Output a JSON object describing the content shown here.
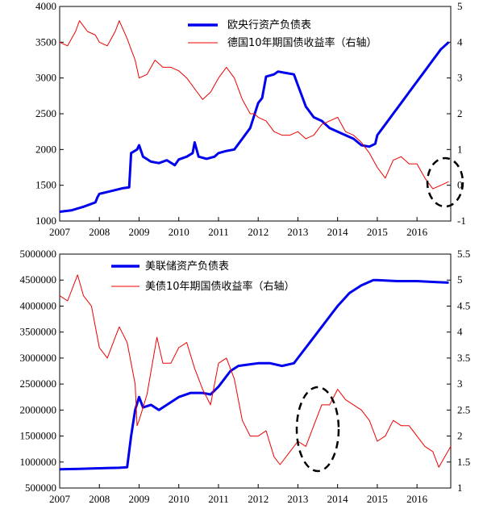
{
  "chart_data": [
    {
      "type": "line",
      "x_ticks": [
        "2007",
        "2008",
        "2009",
        "2010",
        "2011",
        "2012",
        "2013",
        "2014",
        "2015",
        "2016"
      ],
      "xlim": [
        2007.0,
        2016.85
      ],
      "y_left_ticks": [
        "1000",
        "1500",
        "2000",
        "2500",
        "3000",
        "3500",
        "4000"
      ],
      "ylim_left": [
        1000,
        4000
      ],
      "y_right_ticks": [
        "-1",
        "0",
        "1",
        "2",
        "3",
        "4",
        "5"
      ],
      "ylim_right": [
        -1,
        5
      ],
      "legend_position": "top-center",
      "series": [
        {
          "name": "欧央行资产负债表",
          "axis": "left",
          "color": "#0000ee",
          "points": [
            [
              2007.0,
              1130
            ],
            [
              2007.3,
              1150
            ],
            [
              2007.6,
              1200
            ],
            [
              2007.9,
              1260
            ],
            [
              2007.95,
              1330
            ],
            [
              2008.0,
              1380
            ],
            [
              2008.3,
              1420
            ],
            [
              2008.6,
              1460
            ],
            [
              2008.75,
              1470
            ],
            [
              2008.8,
              1950
            ],
            [
              2008.95,
              2000
            ],
            [
              2009.0,
              2060
            ],
            [
              2009.1,
              1900
            ],
            [
              2009.3,
              1830
            ],
            [
              2009.5,
              1810
            ],
            [
              2009.7,
              1850
            ],
            [
              2009.9,
              1780
            ],
            [
              2010.0,
              1860
            ],
            [
              2010.2,
              1900
            ],
            [
              2010.35,
              1950
            ],
            [
              2010.4,
              2100
            ],
            [
              2010.5,
              1900
            ],
            [
              2010.7,
              1870
            ],
            [
              2010.9,
              1900
            ],
            [
              2011.0,
              1950
            ],
            [
              2011.2,
              1980
            ],
            [
              2011.4,
              2000
            ],
            [
              2011.6,
              2150
            ],
            [
              2011.8,
              2300
            ],
            [
              2012.0,
              2650
            ],
            [
              2012.1,
              2720
            ],
            [
              2012.2,
              3020
            ],
            [
              2012.4,
              3050
            ],
            [
              2012.5,
              3090
            ],
            [
              2012.7,
              3070
            ],
            [
              2012.9,
              3050
            ],
            [
              2013.0,
              2900
            ],
            [
              2013.2,
              2600
            ],
            [
              2013.4,
              2450
            ],
            [
              2013.6,
              2400
            ],
            [
              2013.8,
              2300
            ],
            [
              2014.0,
              2250
            ],
            [
              2014.2,
              2200
            ],
            [
              2014.4,
              2150
            ],
            [
              2014.6,
              2060
            ],
            [
              2014.8,
              2040
            ],
            [
              2014.95,
              2080
            ],
            [
              2015.0,
              2200
            ],
            [
              2015.2,
              2350
            ],
            [
              2015.4,
              2500
            ],
            [
              2015.6,
              2650
            ],
            [
              2015.8,
              2800
            ],
            [
              2016.0,
              2950
            ],
            [
              2016.2,
              3100
            ],
            [
              2016.4,
              3250
            ],
            [
              2016.6,
              3400
            ],
            [
              2016.8,
              3500
            ]
          ]
        },
        {
          "name": "德国10年期国债收益率（右轴）",
          "axis": "right",
          "color": "#ee0000",
          "points": [
            [
              2007.0,
              4.0
            ],
            [
              2007.2,
              3.9
            ],
            [
              2007.4,
              4.3
            ],
            [
              2007.5,
              4.6
            ],
            [
              2007.7,
              4.3
            ],
            [
              2007.9,
              4.2
            ],
            [
              2008.0,
              4.0
            ],
            [
              2008.2,
              3.9
            ],
            [
              2008.4,
              4.3
            ],
            [
              2008.5,
              4.6
            ],
            [
              2008.7,
              4.1
            ],
            [
              2008.9,
              3.5
            ],
            [
              2009.0,
              3.0
            ],
            [
              2009.2,
              3.1
            ],
            [
              2009.4,
              3.5
            ],
            [
              2009.6,
              3.3
            ],
            [
              2009.8,
              3.3
            ],
            [
              2010.0,
              3.2
            ],
            [
              2010.2,
              3.0
            ],
            [
              2010.4,
              2.7
            ],
            [
              2010.6,
              2.4
            ],
            [
              2010.8,
              2.6
            ],
            [
              2011.0,
              3.0
            ],
            [
              2011.2,
              3.3
            ],
            [
              2011.4,
              3.0
            ],
            [
              2011.6,
              2.4
            ],
            [
              2011.8,
              2.0
            ],
            [
              2011.9,
              2.0
            ],
            [
              2012.0,
              1.9
            ],
            [
              2012.2,
              1.8
            ],
            [
              2012.4,
              1.5
            ],
            [
              2012.6,
              1.4
            ],
            [
              2012.8,
              1.4
            ],
            [
              2013.0,
              1.5
            ],
            [
              2013.2,
              1.3
            ],
            [
              2013.4,
              1.4
            ],
            [
              2013.6,
              1.7
            ],
            [
              2013.8,
              1.8
            ],
            [
              2014.0,
              1.9
            ],
            [
              2014.2,
              1.5
            ],
            [
              2014.4,
              1.4
            ],
            [
              2014.6,
              1.2
            ],
            [
              2014.8,
              0.9
            ],
            [
              2015.0,
              0.5
            ],
            [
              2015.2,
              0.2
            ],
            [
              2015.4,
              0.7
            ],
            [
              2015.6,
              0.8
            ],
            [
              2015.8,
              0.6
            ],
            [
              2016.0,
              0.6
            ],
            [
              2016.2,
              0.2
            ],
            [
              2016.4,
              -0.1
            ],
            [
              2016.6,
              0.0
            ],
            [
              2016.8,
              0.1
            ]
          ]
        }
      ]
    },
    {
      "type": "line",
      "x_ticks": [
        "2007",
        "2008",
        "2009",
        "2010",
        "2011",
        "2012",
        "2013",
        "2014",
        "2015",
        "2016"
      ],
      "xlim": [
        2007.0,
        2016.85
      ],
      "y_left_ticks": [
        "500000",
        "1000000",
        "1500000",
        "2000000",
        "2500000",
        "3000000",
        "3500000",
        "4000000",
        "4500000",
        "5000000"
      ],
      "ylim_left": [
        500000,
        5000000
      ],
      "y_right_ticks": [
        "1",
        "1.5",
        "2",
        "2.5",
        "3",
        "3.5",
        "4",
        "4.5",
        "5",
        "5.5"
      ],
      "ylim_right": [
        1,
        5.5
      ],
      "legend_position": "top-center",
      "series": [
        {
          "name": "美联储资产负债表",
          "axis": "left",
          "color": "#0000ee",
          "points": [
            [
              2007.0,
              860000
            ],
            [
              2007.5,
              870000
            ],
            [
              2008.0,
              880000
            ],
            [
              2008.5,
              890000
            ],
            [
              2008.7,
              900000
            ],
            [
              2008.8,
              1500000
            ],
            [
              2008.9,
              2000000
            ],
            [
              2009.0,
              2250000
            ],
            [
              2009.1,
              2050000
            ],
            [
              2009.3,
              2100000
            ],
            [
              2009.5,
              2000000
            ],
            [
              2009.7,
              2100000
            ],
            [
              2010.0,
              2250000
            ],
            [
              2010.3,
              2330000
            ],
            [
              2010.6,
              2330000
            ],
            [
              2010.8,
              2300000
            ],
            [
              2011.0,
              2450000
            ],
            [
              2011.3,
              2750000
            ],
            [
              2011.5,
              2850000
            ],
            [
              2011.8,
              2880000
            ],
            [
              2012.0,
              2900000
            ],
            [
              2012.3,
              2900000
            ],
            [
              2012.6,
              2850000
            ],
            [
              2012.9,
              2900000
            ],
            [
              2013.0,
              3000000
            ],
            [
              2013.3,
              3300000
            ],
            [
              2013.6,
              3600000
            ],
            [
              2013.9,
              3900000
            ],
            [
              2014.0,
              4000000
            ],
            [
              2014.3,
              4250000
            ],
            [
              2014.6,
              4400000
            ],
            [
              2014.9,
              4500000
            ],
            [
              2015.0,
              4500000
            ],
            [
              2015.5,
              4480000
            ],
            [
              2016.0,
              4480000
            ],
            [
              2016.5,
              4460000
            ],
            [
              2016.8,
              4450000
            ]
          ]
        },
        {
          "name": "美债10年期国债收益率（右轴）",
          "axis": "right",
          "color": "#ee0000",
          "points": [
            [
              2007.0,
              4.7
            ],
            [
              2007.2,
              4.6
            ],
            [
              2007.45,
              5.1
            ],
            [
              2007.6,
              4.7
            ],
            [
              2007.8,
              4.5
            ],
            [
              2008.0,
              3.7
            ],
            [
              2008.2,
              3.5
            ],
            [
              2008.4,
              3.9
            ],
            [
              2008.5,
              4.1
            ],
            [
              2008.7,
              3.8
            ],
            [
              2008.9,
              3.0
            ],
            [
              2008.95,
              2.2
            ],
            [
              2009.0,
              2.3
            ],
            [
              2009.2,
              2.8
            ],
            [
              2009.45,
              3.9
            ],
            [
              2009.6,
              3.4
            ],
            [
              2009.8,
              3.4
            ],
            [
              2010.0,
              3.7
            ],
            [
              2010.2,
              3.8
            ],
            [
              2010.4,
              3.3
            ],
            [
              2010.6,
              2.9
            ],
            [
              2010.8,
              2.6
            ],
            [
              2011.0,
              3.4
            ],
            [
              2011.2,
              3.5
            ],
            [
              2011.4,
              3.1
            ],
            [
              2011.6,
              2.3
            ],
            [
              2011.8,
              2.0
            ],
            [
              2012.0,
              2.0
            ],
            [
              2012.2,
              2.1
            ],
            [
              2012.4,
              1.6
            ],
            [
              2012.55,
              1.45
            ],
            [
              2012.8,
              1.7
            ],
            [
              2013.0,
              1.9
            ],
            [
              2013.2,
              1.8
            ],
            [
              2013.4,
              2.2
            ],
            [
              2013.6,
              2.6
            ],
            [
              2013.8,
              2.6
            ],
            [
              2014.0,
              2.9
            ],
            [
              2014.2,
              2.7
            ],
            [
              2014.4,
              2.6
            ],
            [
              2014.6,
              2.5
            ],
            [
              2014.8,
              2.3
            ],
            [
              2015.0,
              1.9
            ],
            [
              2015.2,
              2.0
            ],
            [
              2015.4,
              2.3
            ],
            [
              2015.6,
              2.2
            ],
            [
              2015.8,
              2.2
            ],
            [
              2016.0,
              2.0
            ],
            [
              2016.2,
              1.8
            ],
            [
              2016.4,
              1.7
            ],
            [
              2016.55,
              1.4
            ],
            [
              2016.7,
              1.6
            ],
            [
              2016.85,
              1.8
            ]
          ]
        }
      ]
    }
  ]
}
